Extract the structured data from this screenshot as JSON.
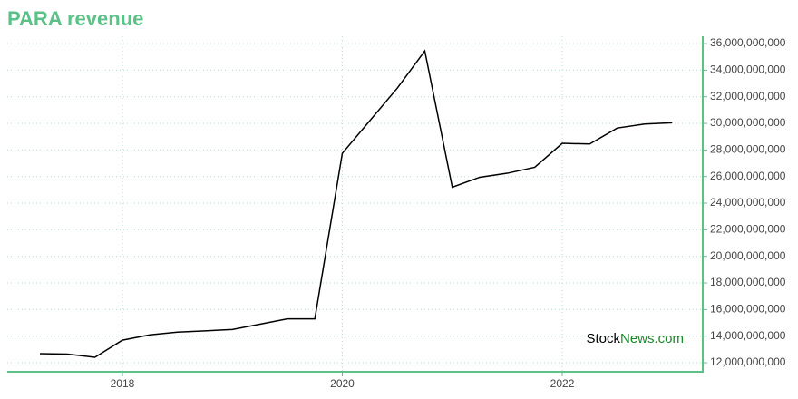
{
  "chart_data": {
    "type": "line",
    "title": "PARA revenue",
    "x": [
      2017.25,
      2017.5,
      2017.75,
      2018.0,
      2018.25,
      2018.5,
      2018.75,
      2019.0,
      2019.25,
      2019.5,
      2019.75,
      2020.0,
      2020.25,
      2020.5,
      2020.75,
      2021.0,
      2021.25,
      2021.5,
      2021.75,
      2022.0,
      2022.25,
      2022.5,
      2022.75,
      2023.0
    ],
    "values": [
      12680000000,
      12650000000,
      12410000000,
      13700000000,
      14100000000,
      14300000000,
      14400000000,
      14500000000,
      14900000000,
      15300000000,
      15300000000,
      27750000000,
      30200000000,
      32650000000,
      35450000000,
      25200000000,
      25950000000,
      26250000000,
      26700000000,
      28500000000,
      28450000000,
      29650000000,
      29950000000,
      30050000000
    ],
    "color": "#000000",
    "xlim": [
      2016.953,
      2023.278
    ],
    "xticks": [
      2018,
      2020,
      2022
    ],
    "ylim": [
      11320000000,
      36550000000
    ],
    "yticks": [
      {
        "value": 12000000000,
        "label": "12,000,000,000"
      },
      {
        "value": 14000000000,
        "label": "14,000,000,000"
      },
      {
        "value": 16000000000,
        "label": "16,000,000,000"
      },
      {
        "value": 18000000000,
        "label": "18,000,000,000"
      },
      {
        "value": 20000000000,
        "label": "20,000,000,000"
      },
      {
        "value": 22000000000,
        "label": "22,000,000,000"
      },
      {
        "value": 24000000000,
        "label": "24,000,000,000"
      },
      {
        "value": 26000000000,
        "label": "26,000,000,000"
      },
      {
        "value": 28000000000,
        "label": "28,000,000,000"
      },
      {
        "value": 30000000000,
        "label": "30,000,000,000"
      },
      {
        "value": 32000000000,
        "label": "32,000,000,000"
      },
      {
        "value": 34000000000,
        "label": "34,000,000,000"
      },
      {
        "value": 36000000000,
        "label": "36,000,000,000"
      }
    ],
    "grid": true,
    "axis_color": "#5cc187",
    "watermark": {
      "prefix": "Stock",
      "suffix": "News.com"
    }
  }
}
